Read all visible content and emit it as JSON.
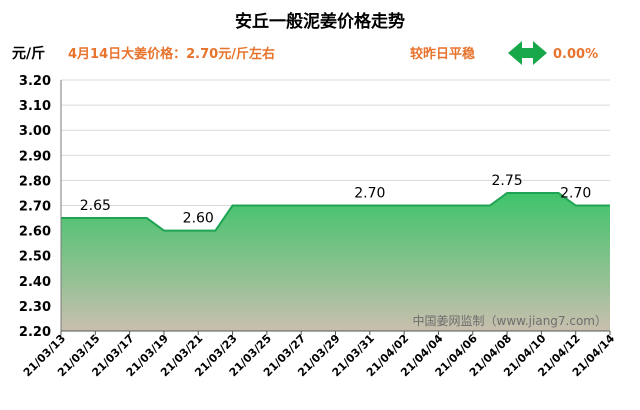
{
  "header": {
    "title": "安丘一般泥姜价格走势",
    "unit": "元/斤",
    "price_text": "4月14日大姜价格：2.70元/斤左右",
    "compare_label": "较昨日平稳",
    "change_value": "0.00%",
    "change_icon": "left-right-arrow-icon"
  },
  "watermark": "中国姜网监制（www.jiang7.com）",
  "colors": {
    "accent_orange": "#e8732c",
    "line_green": "#1fa354",
    "fill_top": "#3ec46a",
    "fill_bottom": "#c8bfae",
    "arrow_green": "#18a84a",
    "grid": "#d9d9d9"
  },
  "chart_data": {
    "type": "area",
    "title": "安丘一般泥姜价格走势",
    "ylabel": "元/斤",
    "ylim": [
      2.2,
      3.2
    ],
    "yticks": [
      "2.20",
      "2.30",
      "2.40",
      "2.50",
      "2.60",
      "2.70",
      "2.80",
      "2.90",
      "3.00",
      "3.10",
      "3.20"
    ],
    "x": [
      "21/03/13",
      "21/03/14",
      "21/03/15",
      "21/03/16",
      "21/03/17",
      "21/03/18",
      "21/03/19",
      "21/03/20",
      "21/03/21",
      "21/03/22",
      "21/03/23",
      "21/03/24",
      "21/03/25",
      "21/03/26",
      "21/03/27",
      "21/03/28",
      "21/03/29",
      "21/03/30",
      "21/03/31",
      "21/04/01",
      "21/04/02",
      "21/04/03",
      "21/04/04",
      "21/04/05",
      "21/04/06",
      "21/04/07",
      "21/04/08",
      "21/04/09",
      "21/04/10",
      "21/04/11",
      "21/04/12",
      "21/04/13",
      "21/04/14"
    ],
    "values": [
      2.65,
      2.65,
      2.65,
      2.65,
      2.65,
      2.65,
      2.6,
      2.6,
      2.6,
      2.6,
      2.7,
      2.7,
      2.7,
      2.7,
      2.7,
      2.7,
      2.7,
      2.7,
      2.7,
      2.7,
      2.7,
      2.7,
      2.7,
      2.7,
      2.7,
      2.7,
      2.75,
      2.75,
      2.75,
      2.75,
      2.7,
      2.7,
      2.7
    ],
    "xtick_labels": [
      "21/03/13",
      "21/03/15",
      "21/03/17",
      "21/03/19",
      "21/03/21",
      "21/03/23",
      "21/03/25",
      "21/03/27",
      "21/03/29",
      "21/03/31",
      "21/04/02",
      "21/04/04",
      "21/04/06",
      "21/04/08",
      "21/04/10",
      "21/04/12",
      "21/04/14"
    ],
    "data_labels": [
      {
        "x": "21/03/15",
        "text": "2.65"
      },
      {
        "x": "21/03/21",
        "text": "2.60"
      },
      {
        "x": "21/03/31",
        "text": "2.70"
      },
      {
        "x": "21/04/08",
        "text": "2.75"
      },
      {
        "x": "21/04/12",
        "text": "2.70"
      }
    ],
    "grid": "horizontal",
    "legend": "none"
  }
}
